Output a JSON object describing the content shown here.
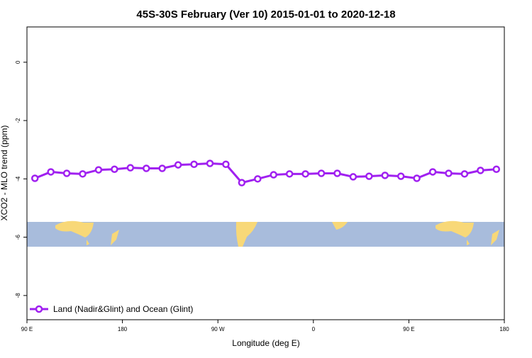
{
  "chart_data": {
    "type": "line",
    "title": "45S-30S February (Ver 10)   2015-01-01 to 2020-12-18",
    "x_label": "Longitude (deg E)",
    "y_label": "XCO2 - MLO trend (ppm)",
    "x": [
      97.5,
      112.5,
      127.5,
      142.5,
      157.5,
      172.5,
      187.5,
      202.5,
      217.5,
      232.5,
      247.5,
      262.5,
      277.5,
      292.5,
      307.5,
      322.5,
      337.5,
      352.5,
      367.5,
      382.5,
      397.5,
      412.5,
      427.5,
      442.5,
      457.5,
      472.5,
      487.5,
      502.5,
      517.5,
      532.5
    ],
    "series": [
      {
        "name": "Land (Nadir&Glint) and Ocean (Glint)",
        "color": "#a020f0",
        "values": [
          -3.98,
          -3.76,
          -3.81,
          -3.83,
          -3.69,
          -3.67,
          -3.62,
          -3.64,
          -3.64,
          -3.52,
          -3.5,
          -3.47,
          -3.5,
          -4.13,
          -4.0,
          -3.86,
          -3.83,
          -3.83,
          -3.81,
          -3.81,
          -3.93,
          -3.91,
          -3.88,
          -3.91,
          -3.98,
          -3.76,
          -3.81,
          -3.83,
          -3.71,
          -3.67
        ]
      }
    ],
    "xlim": [
      90,
      540
    ],
    "xticks": [
      {
        "value": 90,
        "label": "90 E"
      },
      {
        "value": 180,
        "label": "180"
      },
      {
        "value": 270,
        "label": "90 W"
      },
      {
        "value": 360,
        "label": "0"
      },
      {
        "value": 450,
        "label": "90 E"
      },
      {
        "value": 540,
        "label": "180"
      }
    ],
    "ylim": [
      -8.83,
      1.21
    ],
    "yticks": [
      0,
      -2,
      -4,
      -6,
      -8
    ],
    "legend": "bottom-left"
  }
}
